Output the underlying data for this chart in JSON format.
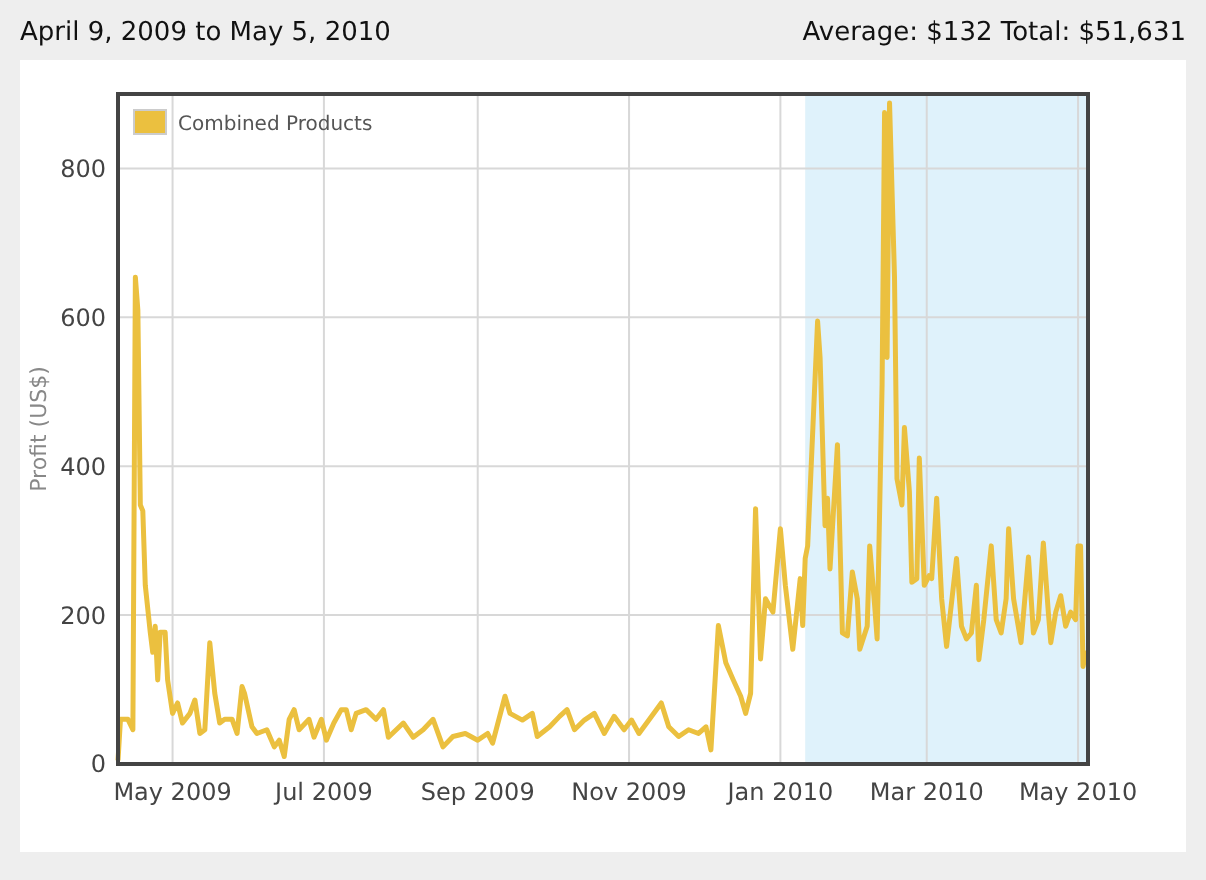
{
  "chart_data": {
    "type": "line",
    "title": "April 9, 2009 to May 5, 2010",
    "subtitle": "Average: $132  Total: $51,631",
    "ylabel": "Profit (US$)",
    "x": [
      "2009-04-09",
      "2009-04-10",
      "2009-04-13",
      "2009-04-15",
      "2009-04-16",
      "2009-04-17",
      "2009-04-18",
      "2009-04-19",
      "2009-04-20",
      "2009-04-22",
      "2009-04-23",
      "2009-04-24",
      "2009-04-25",
      "2009-04-26",
      "2009-04-28",
      "2009-04-29",
      "2009-05-01",
      "2009-05-03",
      "2009-05-05",
      "2009-05-08",
      "2009-05-10",
      "2009-05-12",
      "2009-05-14",
      "2009-05-16",
      "2009-05-18",
      "2009-05-20",
      "2009-05-22",
      "2009-05-25",
      "2009-05-27",
      "2009-05-29",
      "2009-05-30",
      "2009-06-02",
      "2009-06-04",
      "2009-06-08",
      "2009-06-11",
      "2009-06-13",
      "2009-06-15",
      "2009-06-17",
      "2009-06-19",
      "2009-06-21",
      "2009-06-25",
      "2009-06-27",
      "2009-06-30",
      "2009-07-02",
      "2009-07-05",
      "2009-07-08",
      "2009-07-10",
      "2009-07-12",
      "2009-07-14",
      "2009-07-18",
      "2009-07-22",
      "2009-07-25",
      "2009-07-27",
      "2009-08-02",
      "2009-08-06",
      "2009-08-10",
      "2009-08-14",
      "2009-08-18",
      "2009-08-22",
      "2009-08-27",
      "2009-09-01",
      "2009-09-05",
      "2009-09-07",
      "2009-09-12",
      "2009-09-14",
      "2009-09-19",
      "2009-09-23",
      "2009-09-25",
      "2009-09-30",
      "2009-10-04",
      "2009-10-07",
      "2009-10-10",
      "2009-10-14",
      "2009-10-18",
      "2009-10-22",
      "2009-10-26",
      "2009-10-30",
      "2009-11-02",
      "2009-11-05",
      "2009-11-09",
      "2009-11-14",
      "2009-11-17",
      "2009-11-21",
      "2009-11-25",
      "2009-11-29",
      "2009-12-02",
      "2009-12-04",
      "2009-12-07",
      "2009-12-10",
      "2009-12-13",
      "2009-12-16",
      "2009-12-18",
      "2009-12-20",
      "2009-12-22",
      "2009-12-24",
      "2009-12-26",
      "2009-12-29",
      "2010-01-01",
      "2010-01-03",
      "2010-01-06",
      "2010-01-09",
      "2010-01-10",
      "2010-01-11",
      "2010-01-12",
      "2010-01-16",
      "2010-01-17",
      "2010-01-19",
      "2010-01-20",
      "2010-01-21",
      "2010-01-24",
      "2010-01-26",
      "2010-01-28",
      "2010-01-30",
      "2010-02-01",
      "2010-02-02",
      "2010-02-05",
      "2010-02-06",
      "2010-02-08",
      "2010-02-09",
      "2010-02-11",
      "2010-02-12",
      "2010-02-13",
      "2010-02-14",
      "2010-02-16",
      "2010-02-17",
      "2010-02-19",
      "2010-02-20",
      "2010-02-22",
      "2010-02-23",
      "2010-02-25",
      "2010-02-26",
      "2010-02-28",
      "2010-03-02",
      "2010-03-03",
      "2010-03-05",
      "2010-03-07",
      "2010-03-09",
      "2010-03-13",
      "2010-03-15",
      "2010-03-17",
      "2010-03-19",
      "2010-03-21",
      "2010-03-22",
      "2010-03-24",
      "2010-03-27",
      "2010-03-29",
      "2010-03-31",
      "2010-04-02",
      "2010-04-03",
      "2010-04-05",
      "2010-04-08",
      "2010-04-11",
      "2010-04-13",
      "2010-04-15",
      "2010-04-17",
      "2010-04-19",
      "2010-04-20",
      "2010-04-22",
      "2010-04-24",
      "2010-04-26",
      "2010-04-28",
      "2010-04-30",
      "2010-05-01",
      "2010-05-02",
      "2010-05-03",
      "2010-05-04",
      "2010-05-05"
    ],
    "series": [
      {
        "name": "Combined Products",
        "color": "#ebc03f",
        "values": [
          5,
          60,
          60,
          46,
          654,
          610,
          348,
          340,
          240,
          177,
          150,
          185,
          113,
          177,
          177,
          113,
          68,
          82,
          55,
          68,
          86,
          41,
          46,
          163,
          95,
          55,
          60,
          60,
          41,
          104,
          95,
          50,
          41,
          46,
          23,
          32,
          10,
          60,
          73,
          46,
          60,
          36,
          60,
          32,
          55,
          73,
          73,
          46,
          68,
          73,
          60,
          73,
          36,
          55,
          36,
          46,
          60,
          23,
          37,
          41,
          32,
          41,
          28,
          91,
          68,
          59,
          68,
          37,
          50,
          64,
          73,
          46,
          59,
          68,
          41,
          64,
          46,
          59,
          41,
          59,
          82,
          50,
          37,
          46,
          41,
          50,
          19,
          186,
          136,
          113,
          91,
          68,
          95,
          343,
          141,
          222,
          204,
          316,
          240,
          154,
          249,
          186,
          276,
          293,
          595,
          546,
          320,
          357,
          262,
          429,
          176,
          172,
          258,
          222,
          154,
          185,
          293,
          213,
          168,
          510,
          875,
          546,
          888,
          654,
          383,
          348,
          452,
          366,
          244,
          249,
          411,
          240,
          253,
          249,
          357,
          222,
          158,
          276,
          185,
          168,
          176,
          240,
          140,
          194,
          293,
          194,
          176,
          222,
          316,
          222,
          163,
          278,
          176,
          194,
          297,
          204,
          163,
          204,
          226,
          185,
          204,
          194,
          293,
          293,
          131,
          149,
          150
        ]
      }
    ],
    "xlim": [
      "2009-04-09",
      "2010-05-05"
    ],
    "xticks": [
      {
        "value": "2009-05-01",
        "label": "May 2009"
      },
      {
        "value": "2009-07-01",
        "label": "Jul 2009"
      },
      {
        "value": "2009-09-01",
        "label": "Sep 2009"
      },
      {
        "value": "2009-11-01",
        "label": "Nov 2009"
      },
      {
        "value": "2010-01-01",
        "label": "Jan 2010"
      },
      {
        "value": "2010-03-01",
        "label": "Mar 2010"
      },
      {
        "value": "2010-05-01",
        "label": "May 2010"
      }
    ],
    "ylim": [
      0,
      900
    ],
    "yticks": [
      0,
      200,
      400,
      600,
      800
    ],
    "bands": [
      {
        "axis": "x",
        "from": "2010-01-11",
        "to": "2010-05-05",
        "color": "#dff2fb"
      }
    ],
    "grid": true,
    "legend": "top left",
    "line_style": "solid"
  }
}
